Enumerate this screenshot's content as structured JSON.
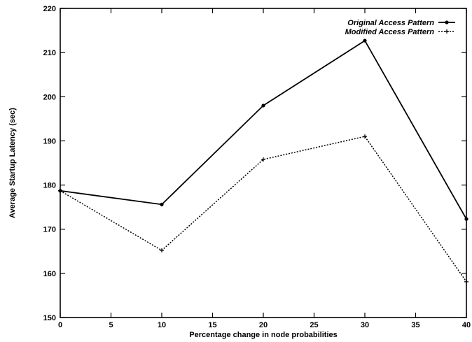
{
  "chart_data": {
    "type": "line",
    "xlabel": "Percentage change in node probabilities",
    "ylabel": "Average Startup Latency (sec)",
    "xlim": [
      0,
      40
    ],
    "ylim": [
      150,
      220
    ],
    "xticks": [
      0,
      5,
      10,
      15,
      20,
      25,
      30,
      35,
      40
    ],
    "yticks": [
      150,
      160,
      170,
      180,
      190,
      200,
      210,
      220
    ],
    "grid": false,
    "legend_position": "top-right",
    "x": [
      0,
      10,
      20,
      30,
      40
    ],
    "series": [
      {
        "name": "Original Access Pattern",
        "values": [
          178.7,
          175.6,
          198.0,
          212.7,
          172.3
        ],
        "line_style": "solid",
        "marker": "dot"
      },
      {
        "name": "Modified Access Pattern",
        "values": [
          178.7,
          165.2,
          185.8,
          191.0,
          158.1
        ],
        "line_style": "dotted",
        "marker": "plus"
      }
    ]
  }
}
